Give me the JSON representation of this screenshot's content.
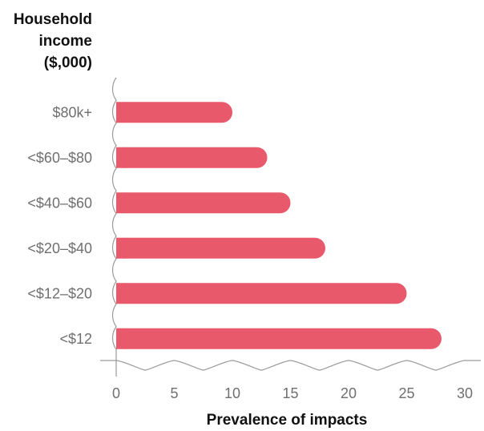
{
  "chart_data": {
    "type": "bar",
    "orientation": "horizontal",
    "ylabel_lines": [
      "Household",
      "income",
      "($,000)"
    ],
    "xlabel": "Prevalence of impacts",
    "categories": [
      "$80k+",
      "<$60–$80",
      "<$40–$60",
      "<$20–$40",
      "<$12–$20",
      "<$12"
    ],
    "values": [
      10,
      13,
      15,
      18,
      25,
      28
    ],
    "xlim": [
      0,
      30
    ],
    "xticks": [
      0,
      5,
      10,
      15,
      20,
      25,
      30
    ],
    "bar_color": "#e8596b",
    "axis_color": "#9a9a9a",
    "grid": false,
    "legend": "none"
  }
}
